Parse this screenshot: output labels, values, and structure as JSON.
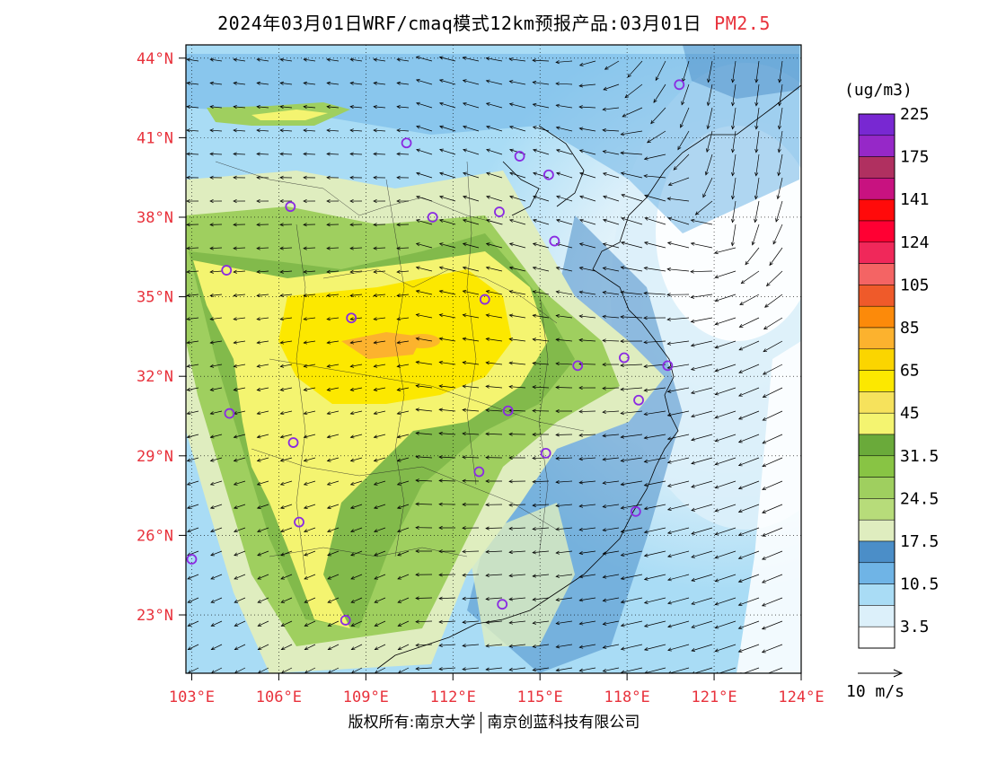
{
  "title": {
    "main": "2024年03月01日WRF/cmaq模式12km预报产品:03月01日",
    "species": "PM2.5",
    "species_color": "#e8323c"
  },
  "map": {
    "lon_range": [
      102.8,
      124.0
    ],
    "lat_range": [
      20.8,
      44.5
    ],
    "lon_labels": [
      "103°E",
      "106°E",
      "109°E",
      "112°E",
      "115°E",
      "118°E",
      "121°E",
      "124°E"
    ],
    "lon_ticks": [
      103,
      106,
      109,
      112,
      115,
      118,
      121,
      124
    ],
    "lat_labels": [
      "44°N",
      "41°N",
      "38°N",
      "35°N",
      "32°N",
      "29°N",
      "26°N",
      "23°N"
    ],
    "lat_ticks": [
      44,
      41,
      38,
      35,
      32,
      29,
      26,
      23
    ],
    "label_color": "#e8323c"
  },
  "legend": {
    "unit": "(ug/m3)",
    "colors": [
      "#ffffff",
      "#dcf0fa",
      "#a9dcf5",
      "#6fb4e6",
      "#4b8ec8",
      "#dfedbf",
      "#b7dc7a",
      "#9fcf5f",
      "#88c444",
      "#6aaa3a",
      "#f4f470",
      "#f6e25c",
      "#fce800",
      "#fbd500",
      "#fcb22e",
      "#fc8a0a",
      "#ef5a2a",
      "#f46464",
      "#f0285a",
      "#ff0033",
      "#ff0a0a",
      "#c81280",
      "#b03060",
      "#9628c8",
      "#7828d2"
    ],
    "labels": [
      "3.5",
      "10.5",
      "17.5",
      "24.5",
      "31.5",
      "45",
      "65",
      "85",
      "105",
      "124",
      "141",
      "175",
      "225"
    ]
  },
  "wind_scale": {
    "label": "10 m/s"
  },
  "copyright": {
    "left": "版权所有:南京大学",
    "right": "南京创蓝科技有限公司"
  },
  "sites": [
    {
      "lon": 119.8,
      "lat": 43.0
    },
    {
      "lon": 110.4,
      "lat": 40.8
    },
    {
      "lon": 114.3,
      "lat": 40.3
    },
    {
      "lon": 115.3,
      "lat": 39.6
    },
    {
      "lon": 106.4,
      "lat": 38.4
    },
    {
      "lon": 111.3,
      "lat": 38.0
    },
    {
      "lon": 113.6,
      "lat": 38.2
    },
    {
      "lon": 115.5,
      "lat": 37.1
    },
    {
      "lon": 104.2,
      "lat": 36.0
    },
    {
      "lon": 113.1,
      "lat": 34.9
    },
    {
      "lon": 108.5,
      "lat": 34.2
    },
    {
      "lon": 117.9,
      "lat": 32.7
    },
    {
      "lon": 116.3,
      "lat": 32.4
    },
    {
      "lon": 119.4,
      "lat": 32.4
    },
    {
      "lon": 118.4,
      "lat": 31.1
    },
    {
      "lon": 104.3,
      "lat": 30.6
    },
    {
      "lon": 113.9,
      "lat": 30.7
    },
    {
      "lon": 115.2,
      "lat": 29.1
    },
    {
      "lon": 106.5,
      "lat": 29.5
    },
    {
      "lon": 112.9,
      "lat": 28.4
    },
    {
      "lon": 118.3,
      "lat": 26.9
    },
    {
      "lon": 106.7,
      "lat": 26.5
    },
    {
      "lon": 103.0,
      "lat": 25.1
    },
    {
      "lon": 113.7,
      "lat": 23.4
    },
    {
      "lon": 108.3,
      "lat": 22.8
    }
  ]
}
